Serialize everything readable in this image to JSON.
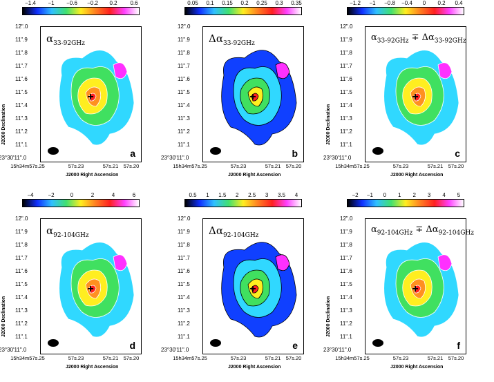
{
  "panels": [
    {
      "letter": "a",
      "title": "α",
      "sub": "33-92GHz",
      "title2": "",
      "sub2": "",
      "colorbar_ticks": [
        "−1.4",
        "−1",
        "−0.6",
        "−0.2",
        "0.2",
        "0.6"
      ],
      "ylabel": "J2000 Declination",
      "xlabel": "J2000 Right Ascension"
    },
    {
      "letter": "b",
      "title": "Δα",
      "sub": "33-92GHz",
      "title2": "",
      "sub2": "",
      "colorbar_ticks": [
        "0.05",
        "0.1",
        "0.15",
        "0.2",
        "0.25",
        "0.3",
        "0.35"
      ],
      "ylabel": "",
      "xlabel": "J2000 Right Ascension"
    },
    {
      "letter": "c",
      "title": "α",
      "sub": "33-92GHz",
      "title2": " ∓ Δα",
      "sub2": "33-92GHz",
      "colorbar_ticks": [
        "−1.2",
        "−1",
        "−0.8",
        "−0.4",
        "0",
        "0.2",
        "0.4"
      ],
      "ylabel": "J2000 Declination",
      "xlabel": "J2000 Right Ascension"
    },
    {
      "letter": "d",
      "title": "α",
      "sub": "92-104GHz",
      "title2": "",
      "sub2": "",
      "colorbar_ticks": [
        "−4",
        "−2",
        "0",
        "2",
        "4",
        "6"
      ],
      "ylabel": "J2000 Declination",
      "xlabel": "J2000 Right Ascension"
    },
    {
      "letter": "e",
      "title": "Δα",
      "sub": "92-104GHz",
      "title2": "",
      "sub2": "",
      "colorbar_ticks": [
        "0.5",
        "1",
        "1.5",
        "2",
        "2.5",
        "3",
        "3.5",
        "4"
      ],
      "ylabel": "",
      "xlabel": "J2000 Right Ascension"
    },
    {
      "letter": "f",
      "title": "α",
      "sub": "92-104GHz",
      "title2": " ∓ Δα",
      "sub2": "92-104GHz",
      "colorbar_ticks": [
        "−2",
        "−1",
        "0",
        "1",
        "2",
        "3",
        "4",
        "5"
      ],
      "ylabel": "J2000 Declination",
      "xlabel": "J2000 Right Ascension"
    }
  ],
  "y_ticks": [
    "12\".0",
    "11\".9",
    "11\".8",
    "11\".7",
    "11\".6",
    "11\".5",
    "11\".4",
    "11\".3",
    "11\".2",
    "11\".1",
    "23°30'11\".0"
  ],
  "x_ticks": [
    "15h34m57s.25",
    "57s.23",
    "57s.21",
    "57s.20"
  ],
  "colors": {
    "blue": "#1040ff",
    "cyan": "#30d8ff",
    "green": "#40e060",
    "yellow": "#ffee20",
    "orange": "#ff9020",
    "red": "#ff2020",
    "magenta": "#ff30ff",
    "white": "#ffffff"
  }
}
